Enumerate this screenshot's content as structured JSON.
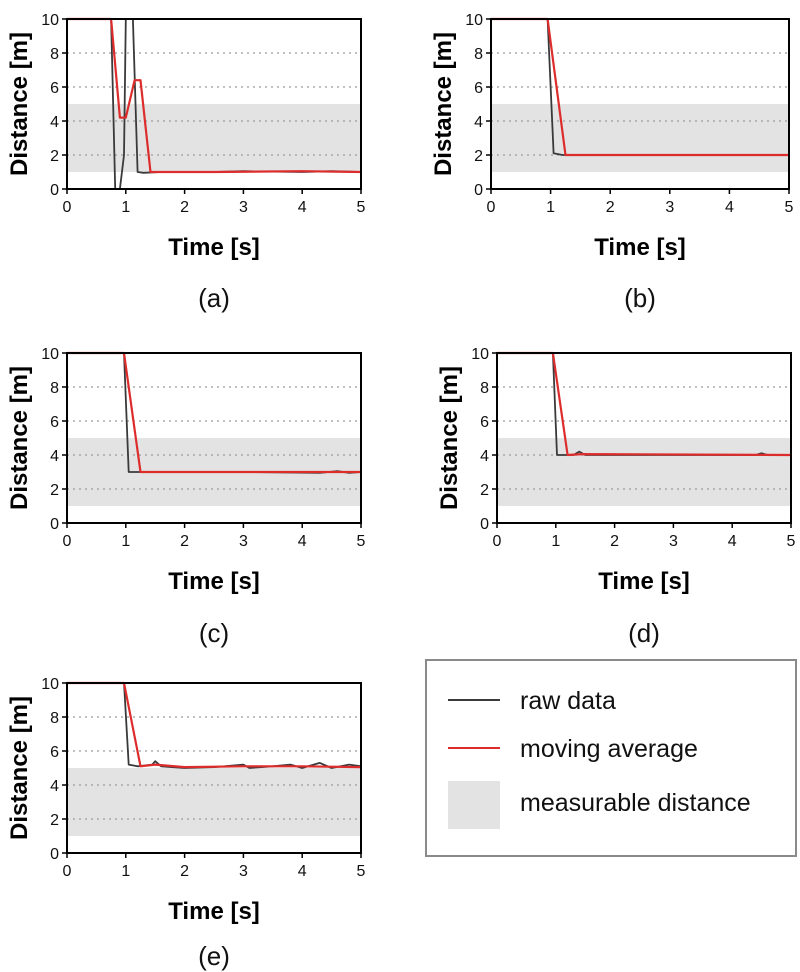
{
  "colors": {
    "raw": "#3a3a3a",
    "average": "#dd2c2c",
    "band": "#e3e3e3",
    "grid": "#9a9a9a",
    "legend_border": "#8a8a8a"
  },
  "legend": {
    "raw_label": "raw data",
    "average_label": "moving average",
    "band_label": "measurable distance"
  },
  "chart_data": [
    {
      "type": "line",
      "caption": "(a)",
      "xlabel": "Time [s]",
      "ylabel": "Distance [m]",
      "xlim": [
        0,
        5
      ],
      "ylim": [
        0,
        10
      ],
      "xticks": [
        0,
        1,
        2,
        3,
        4,
        5
      ],
      "yticks": [
        0,
        2,
        4,
        6,
        8,
        10
      ],
      "measurable_band": [
        1,
        5
      ],
      "grid": "horizontal-dotted",
      "series": [
        {
          "name": "raw data",
          "points": [
            [
              0,
              10
            ],
            [
              0.75,
              10
            ],
            [
              0.82,
              0
            ],
            [
              0.9,
              0
            ],
            [
              0.97,
              2
            ],
            [
              1.0,
              10
            ],
            [
              1.12,
              10
            ],
            [
              1.2,
              1.0
            ],
            [
              1.3,
              0.95
            ],
            [
              1.6,
              1.0
            ],
            [
              2.5,
              1.0
            ],
            [
              3.0,
              1.05
            ],
            [
              4.0,
              1.0
            ],
            [
              4.5,
              1.05
            ],
            [
              5.0,
              1.0
            ]
          ]
        },
        {
          "name": "moving average",
          "points": [
            [
              0,
              10
            ],
            [
              0.75,
              10
            ],
            [
              0.9,
              4.2
            ],
            [
              1.0,
              4.2
            ],
            [
              1.15,
              6.4
            ],
            [
              1.25,
              6.4
            ],
            [
              1.42,
              1.0
            ],
            [
              2.5,
              1.0
            ],
            [
              4.0,
              1.05
            ],
            [
              5.0,
              1.0
            ]
          ]
        }
      ]
    },
    {
      "type": "line",
      "caption": "(b)",
      "xlabel": "Time [s]",
      "ylabel": "Distance [m]",
      "xlim": [
        0,
        5
      ],
      "ylim": [
        0,
        10
      ],
      "xticks": [
        0,
        1,
        2,
        3,
        4,
        5
      ],
      "yticks": [
        0,
        2,
        4,
        6,
        8,
        10
      ],
      "measurable_band": [
        1,
        5
      ],
      "grid": "horizontal-dotted",
      "series": [
        {
          "name": "raw data",
          "points": [
            [
              0,
              10
            ],
            [
              0.95,
              10
            ],
            [
              1.05,
              2.1
            ],
            [
              1.2,
              2.0
            ],
            [
              5.0,
              2.0
            ]
          ]
        },
        {
          "name": "moving average",
          "points": [
            [
              0,
              10
            ],
            [
              0.95,
              10
            ],
            [
              1.25,
              2.0
            ],
            [
              5.0,
              2.0
            ]
          ]
        }
      ]
    },
    {
      "type": "line",
      "caption": "(c)",
      "xlabel": "Time [s]",
      "ylabel": "Distance [m]",
      "xlim": [
        0,
        5
      ],
      "ylim": [
        0,
        10
      ],
      "xticks": [
        0,
        1,
        2,
        3,
        4,
        5
      ],
      "yticks": [
        0,
        2,
        4,
        6,
        8,
        10
      ],
      "measurable_band": [
        1,
        5
      ],
      "grid": "horizontal-dotted",
      "series": [
        {
          "name": "raw data",
          "points": [
            [
              0,
              10
            ],
            [
              0.97,
              10
            ],
            [
              1.05,
              3.0
            ],
            [
              2.0,
              3.0
            ],
            [
              3.0,
              3.0
            ],
            [
              4.3,
              2.95
            ],
            [
              4.6,
              3.05
            ],
            [
              4.8,
              2.95
            ],
            [
              5.0,
              3.0
            ]
          ]
        },
        {
          "name": "moving average",
          "points": [
            [
              0,
              10
            ],
            [
              0.97,
              10
            ],
            [
              1.25,
              3.0
            ],
            [
              5.0,
              3.0
            ]
          ]
        }
      ]
    },
    {
      "type": "line",
      "caption": "(d)",
      "xlabel": "Time [s]",
      "ylabel": "Distance [m]",
      "xlim": [
        0,
        5
      ],
      "ylim": [
        0,
        10
      ],
      "xticks": [
        0,
        1,
        2,
        3,
        4,
        5
      ],
      "yticks": [
        0,
        2,
        4,
        6,
        8,
        10
      ],
      "measurable_band": [
        1,
        5
      ],
      "grid": "horizontal-dotted",
      "series": [
        {
          "name": "raw data",
          "points": [
            [
              0,
              10
            ],
            [
              0.95,
              10
            ],
            [
              1.02,
              4.0
            ],
            [
              1.3,
              4.0
            ],
            [
              1.4,
              4.2
            ],
            [
              1.5,
              4.0
            ],
            [
              4.4,
              4.0
            ],
            [
              4.5,
              4.1
            ],
            [
              4.6,
              4.0
            ],
            [
              5.0,
              4.0
            ]
          ]
        },
        {
          "name": "moving average",
          "points": [
            [
              0,
              10
            ],
            [
              0.95,
              10
            ],
            [
              1.2,
              4.0
            ],
            [
              1.45,
              4.05
            ],
            [
              5.0,
              4.0
            ]
          ]
        }
      ]
    },
    {
      "type": "line",
      "caption": "(e)",
      "xlabel": "Time [s]",
      "ylabel": "Distance [m]",
      "xlim": [
        0,
        5
      ],
      "ylim": [
        0,
        10
      ],
      "xticks": [
        0,
        1,
        2,
        3,
        4,
        5
      ],
      "yticks": [
        0,
        2,
        4,
        6,
        8,
        10
      ],
      "measurable_band": [
        1,
        5
      ],
      "grid": "horizontal-dotted",
      "series": [
        {
          "name": "raw data",
          "points": [
            [
              0,
              10
            ],
            [
              0.97,
              10
            ],
            [
              1.05,
              5.2
            ],
            [
              1.2,
              5.1
            ],
            [
              1.45,
              5.2
            ],
            [
              1.5,
              5.4
            ],
            [
              1.6,
              5.1
            ],
            [
              2.0,
              5.0
            ],
            [
              2.5,
              5.05
            ],
            [
              3.0,
              5.2
            ],
            [
              3.1,
              5.0
            ],
            [
              3.5,
              5.1
            ],
            [
              3.8,
              5.2
            ],
            [
              4.0,
              5.0
            ],
            [
              4.3,
              5.3
            ],
            [
              4.5,
              5.0
            ],
            [
              4.8,
              5.2
            ],
            [
              5.0,
              5.1
            ]
          ]
        },
        {
          "name": "moving average",
          "points": [
            [
              0,
              10
            ],
            [
              0.97,
              10
            ],
            [
              1.25,
              5.1
            ],
            [
              1.5,
              5.2
            ],
            [
              2.0,
              5.05
            ],
            [
              3.0,
              5.1
            ],
            [
              4.0,
              5.1
            ],
            [
              5.0,
              5.05
            ]
          ]
        }
      ]
    }
  ]
}
